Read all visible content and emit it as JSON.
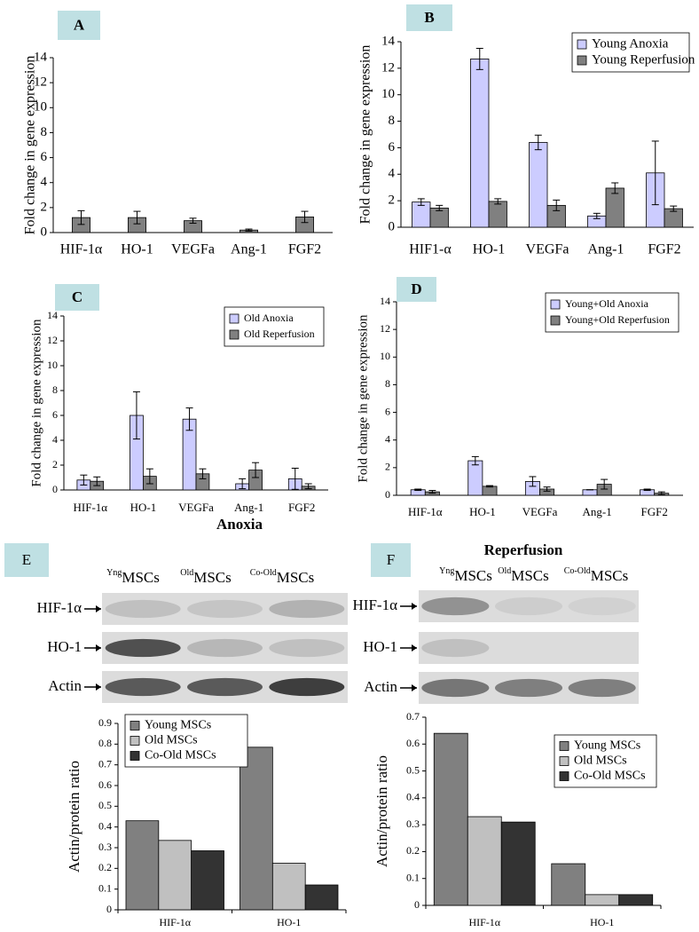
{
  "chart_data": [
    {
      "type": "bar",
      "panel_label": "A",
      "ylabel": "Fold change in gene expression",
      "categories": [
        "HIF-1α",
        "HO-1",
        "VEGFa",
        "Ang-1",
        "FGF2"
      ],
      "series": [
        {
          "color": "#808080",
          "values": [
            1.2,
            1.2,
            0.95,
            0.2,
            1.25
          ],
          "errors": [
            0.55,
            0.5,
            0.2,
            0.08,
            0.45
          ]
        }
      ],
      "ylim": [
        0,
        14
      ],
      "yticks": [
        0,
        2,
        4,
        6,
        8,
        10,
        12,
        14
      ]
    },
    {
      "type": "bar",
      "panel_label": "B",
      "ylabel": "Fold change in gene expression",
      "categories": [
        "HIF1-α",
        "HO-1",
        "VEGFa",
        "Ang-1",
        "FGF2"
      ],
      "series": [
        {
          "name": "Young Anoxia",
          "color": "#ccccff",
          "values": [
            1.9,
            12.7,
            6.4,
            0.85,
            4.1
          ],
          "errors": [
            0.25,
            0.8,
            0.55,
            0.2,
            2.4
          ]
        },
        {
          "name": "Young Reperfusion",
          "color": "#808080",
          "values": [
            1.45,
            1.95,
            1.65,
            2.95,
            1.4
          ],
          "errors": [
            0.2,
            0.2,
            0.4,
            0.4,
            0.2
          ]
        }
      ],
      "ylim": [
        0,
        14
      ],
      "yticks": [
        0,
        2,
        4,
        6,
        8,
        10,
        12,
        14
      ],
      "legend": "upper right"
    },
    {
      "type": "bar",
      "panel_label": "C",
      "ylabel": "Fold change in gene expression",
      "categories": [
        "HIF-1α",
        "HO-1",
        "VEGFa",
        "Ang-1",
        "FGF2"
      ],
      "series": [
        {
          "name": "Old Anoxia",
          "color": "#ccccff",
          "values": [
            0.8,
            6.0,
            5.7,
            0.5,
            0.9
          ],
          "errors": [
            0.4,
            1.9,
            0.9,
            0.4,
            0.85
          ]
        },
        {
          "name": "Old Reperfusion",
          "color": "#808080",
          "values": [
            0.7,
            1.1,
            1.3,
            1.6,
            0.3
          ],
          "errors": [
            0.35,
            0.6,
            0.4,
            0.6,
            0.2
          ]
        }
      ],
      "ylim": [
        0,
        14
      ],
      "yticks": [
        0,
        2,
        4,
        6,
        8,
        10,
        12,
        14
      ],
      "legend": "upper right"
    },
    {
      "type": "bar",
      "panel_label": "D",
      "ylabel": "Fold change in gene expression",
      "categories": [
        "HIF-1α",
        "HO-1",
        "VEGFa",
        "Ang-1",
        "FGF2"
      ],
      "series": [
        {
          "name": "Young+Old Anoxia",
          "color": "#ccccff",
          "values": [
            0.4,
            2.5,
            1.0,
            0.4,
            0.4
          ],
          "errors": [
            0.05,
            0.3,
            0.35,
            0,
            0.05
          ]
        },
        {
          "name": "Young+Old Reperfusion",
          "color": "#808080",
          "values": [
            0.25,
            0.65,
            0.45,
            0.8,
            0.15
          ],
          "errors": [
            0.1,
            0.05,
            0.15,
            0.35,
            0.1
          ]
        }
      ],
      "ylim": [
        0,
        14
      ],
      "yticks": [
        0,
        2,
        4,
        6,
        8,
        10,
        12,
        14
      ],
      "legend": "upper right"
    },
    {
      "type": "bar",
      "ylabel": "Actin/protein ratio",
      "categories": [
        "HIF-1α",
        "HO-1"
      ],
      "series": [
        {
          "name": "Young MSCs",
          "color": "#808080",
          "values": [
            0.43,
            0.785
          ]
        },
        {
          "name": "Old MSCs",
          "color": "#c0c0c0",
          "values": [
            0.335,
            0.225
          ]
        },
        {
          "name": "Co-Old MSCs",
          "color": "#333333",
          "values": [
            0.285,
            0.12
          ]
        }
      ],
      "ylim": [
        0,
        0.9
      ],
      "yticks": [
        0,
        0.1,
        0.2,
        0.3,
        0.4,
        0.5,
        0.6,
        0.7,
        0.8,
        0.9
      ],
      "legend": "upper left"
    },
    {
      "type": "bar",
      "ylabel": "Actin/protein ratio",
      "categories": [
        "HIF-1α",
        "HO-1"
      ],
      "series": [
        {
          "name": "Young MSCs",
          "color": "#808080",
          "values": [
            0.64,
            0.155
          ]
        },
        {
          "name": "Old MSCs",
          "color": "#c0c0c0",
          "values": [
            0.33,
            0.04
          ]
        },
        {
          "name": "Co-Old MSCs",
          "color": "#333333",
          "values": [
            0.31,
            0.04
          ]
        }
      ],
      "ylim": [
        0,
        0.7
      ],
      "yticks": [
        0,
        0.1,
        0.2,
        0.3,
        0.4,
        0.5,
        0.6,
        0.7
      ],
      "legend": "upper right"
    }
  ],
  "blots": [
    {
      "panel_label": "E",
      "title": "Anoxia",
      "lanes": [
        {
          "sup": "Yng",
          "text": "MSCs"
        },
        {
          "sup": "Old",
          "text": "MSCs"
        },
        {
          "sup": "Co-Old",
          "text": "MSCs"
        }
      ],
      "rows": [
        "HIF-1α",
        "HO-1",
        "Actin"
      ]
    },
    {
      "panel_label": "F",
      "title": "Reperfusion",
      "lanes": [
        {
          "sup": "Yng",
          "text": "MSCs"
        },
        {
          "sup": "Old",
          "text": "MSCs"
        },
        {
          "sup": "Co-Old",
          "text": "MSCs"
        }
      ],
      "rows": [
        "HIF-1α",
        "HO-1",
        "Actin"
      ]
    }
  ]
}
